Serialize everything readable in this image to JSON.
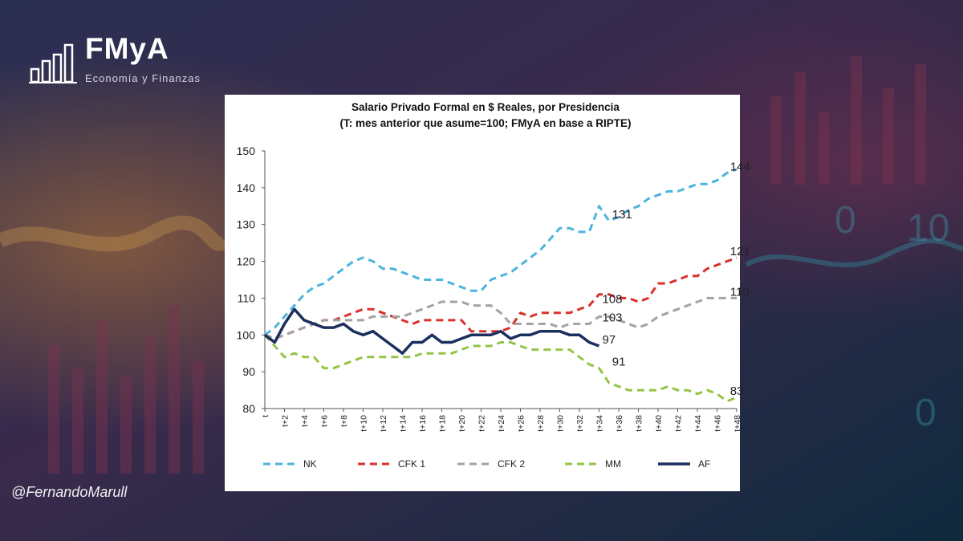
{
  "brand": {
    "name": "FMyA",
    "tagline": "Economía y Finanzas"
  },
  "handle": "@FernandoMarull",
  "chart_data": {
    "type": "line",
    "title": "Salario Privado Formal en $ Reales, por Presidencia",
    "subtitle": "(T: mes anterior que asume=100; FMyA en base a RIPTE)",
    "xlabel": "",
    "ylabel": "",
    "ylim": [
      80,
      150
    ],
    "yticks": [
      80,
      90,
      100,
      110,
      120,
      130,
      140,
      150
    ],
    "x_tick_labels": [
      "t",
      "t+2",
      "t+4",
      "t+6",
      "t+8",
      "t+10",
      "t+12",
      "t+14",
      "t+16",
      "t+18",
      "t+20",
      "t+22",
      "t+24",
      "t+26",
      "t+28",
      "t+30",
      "t+32",
      "t+34",
      "t+36",
      "t+38",
      "t+40",
      "t+42",
      "t+44",
      "t+46",
      "t+48"
    ],
    "x_range": [
      0,
      48
    ],
    "grid": false,
    "legend_position": "bottom",
    "series": [
      {
        "name": "NK",
        "color": "#4bb4de",
        "dashed": true,
        "values": [
          100,
          102,
          105,
          108,
          111,
          113,
          114,
          116,
          118,
          120,
          121,
          120,
          118,
          118,
          117,
          116,
          115,
          115,
          115,
          114,
          113,
          112,
          112,
          115,
          116,
          117,
          119,
          121,
          123,
          126,
          129,
          129,
          128,
          128,
          135,
          131,
          132,
          134,
          135,
          137,
          138,
          139,
          139,
          140,
          141,
          141,
          142,
          144,
          145
        ]
      },
      {
        "name": "CFK 1",
        "color": "#d9312b",
        "dashed": true,
        "values": [
          100,
          99,
          100,
          101,
          102,
          103,
          104,
          104,
          105,
          106,
          107,
          107,
          106,
          105,
          104,
          103,
          104,
          104,
          104,
          104,
          104,
          101,
          101,
          101,
          101,
          102,
          106,
          105,
          106,
          106,
          106,
          106,
          107,
          108,
          111,
          111,
          110,
          110,
          109,
          110,
          114,
          114,
          115,
          116,
          116,
          118,
          119,
          120,
          121
        ]
      },
      {
        "name": "CFK 2",
        "color": "#a3a3a3",
        "dashed": true,
        "values": [
          100,
          99,
          100,
          101,
          102,
          103,
          104,
          104,
          104,
          104,
          104,
          105,
          105,
          105,
          105,
          106,
          107,
          108,
          109,
          109,
          109,
          108,
          108,
          108,
          106,
          103,
          103,
          103,
          103,
          103,
          102,
          103,
          103,
          103,
          105,
          105,
          104,
          103,
          102,
          103,
          105,
          106,
          107,
          108,
          109,
          110,
          110,
          110,
          110
        ]
      },
      {
        "name": "MM",
        "color": "#94c447",
        "dashed": true,
        "values": [
          100,
          97,
          94,
          95,
          94,
          94,
          91,
          91,
          92,
          93,
          94,
          94,
          94,
          94,
          94,
          94,
          95,
          95,
          95,
          95,
          96,
          97,
          97,
          97,
          98,
          98,
          97,
          96,
          96,
          96,
          96,
          96,
          94,
          92,
          91,
          87,
          86,
          85,
          85,
          85,
          85,
          86,
          85,
          85,
          84,
          85,
          84,
          82,
          83
        ]
      },
      {
        "name": "AF",
        "color": "#1b2f5e",
        "dashed": false,
        "values": [
          100,
          98,
          103,
          107,
          104,
          103,
          102,
          102,
          103,
          101,
          100,
          101,
          99,
          97,
          95,
          98,
          98,
          100,
          98,
          98,
          99,
          100,
          100,
          100,
          101,
          99,
          100,
          100,
          101,
          101,
          101,
          100,
          100,
          98,
          97
        ]
      }
    ],
    "annotations": [
      {
        "text": "144",
        "x": 47,
        "y": 144
      },
      {
        "text": "131",
        "x": 35,
        "y": 131
      },
      {
        "text": "121",
        "x": 47,
        "y": 121
      },
      {
        "text": "108",
        "x": 34,
        "y": 108
      },
      {
        "text": "110",
        "x": 47,
        "y": 110
      },
      {
        "text": "103",
        "x": 34,
        "y": 103
      },
      {
        "text": "97",
        "x": 34,
        "y": 97
      },
      {
        "text": "91",
        "x": 35,
        "y": 91
      },
      {
        "text": "83",
        "x": 47,
        "y": 83
      }
    ]
  }
}
